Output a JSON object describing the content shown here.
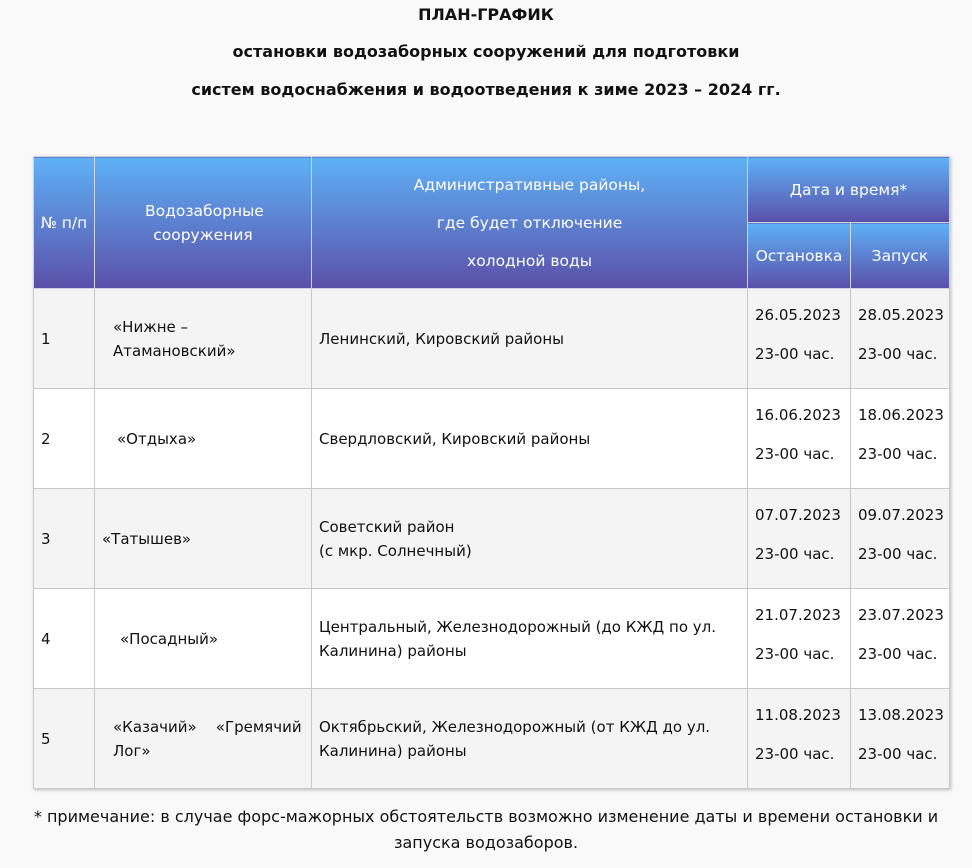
{
  "title": {
    "line1": "ПЛАН-ГРАФИК",
    "line2": "остановки водозаборных сооружений для подготовки",
    "line3": "систем водоснабжения и водоотведения к зиме 2023 – 2024 гг."
  },
  "table": {
    "headers": {
      "num": "№ п/п",
      "facility": "Водозаборные сооружения",
      "districts_line1": "Административные районы,",
      "districts_line2": "где будет отключение",
      "districts_line3": "холодной воды",
      "datetime": "Дата и время*",
      "stop": "Остановка",
      "start": "Запуск"
    },
    "header_gradient": [
      "#5fb1f6",
      "#5a4fa8"
    ],
    "rows": [
      {
        "num": "1",
        "facility": "«Нижне –Атамановский»",
        "districts": "Ленинский, Кировский районы",
        "stop_date": "26.05.2023",
        "stop_time": "23-00 час.",
        "start_date": "28.05.2023",
        "start_time": "23-00 час."
      },
      {
        "num": "2",
        "facility": "«Отдыха»",
        "districts": "Свердловский, Кировский районы",
        "stop_date": "16.06.2023",
        "stop_time": "23-00 час.",
        "start_date": "18.06.2023",
        "start_time": "23-00 час."
      },
      {
        "num": "3",
        "facility": "«Татышев»",
        "districts": "Советский район\n(с мкр. Солнечный)",
        "stop_date": "07.07.2023",
        "stop_time": "23-00 час.",
        "start_date": "09.07.2023",
        "start_time": "23-00 час."
      },
      {
        "num": "4",
        "facility": "«Посадный»",
        "districts": "Центральный, Железнодорожный (до КЖД по ул. Калинина) районы",
        "stop_date": "21.07.2023",
        "stop_time": "23-00 час.",
        "start_date": "23.07.2023",
        "start_time": "23-00 час."
      },
      {
        "num": "5",
        "facility": "«Казачий»    «Гремячий Лог»",
        "districts": "Октябрьский, Железнодорожный (от КЖД до ул. Калинина) районы",
        "stop_date": "11.08.2023",
        "stop_time": "23-00 час.",
        "start_date": "13.08.2023",
        "start_time": "23-00 час."
      }
    ]
  },
  "note": "* примечание: в случае форс-мажорных обстоятельств возможно изменение даты и времени остановки и запуска водозаборов."
}
